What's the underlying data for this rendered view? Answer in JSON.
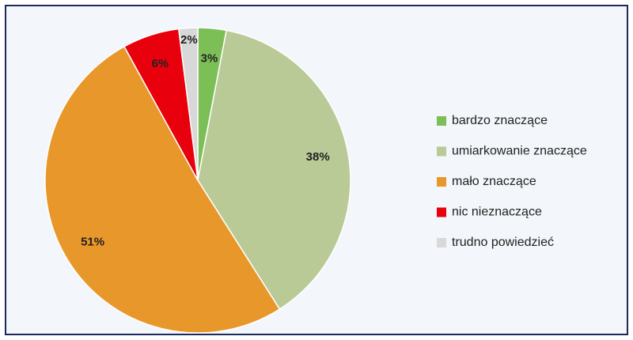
{
  "chart_data": {
    "type": "pie",
    "categories": [
      "bardzo znaczące",
      "umiarkowanie znaczące",
      "mało znaczące",
      "nic nieznaczące",
      "trudno powiedzieć"
    ],
    "values": [
      3,
      38,
      51,
      6,
      2
    ],
    "value_labels": [
      "3%",
      "38%",
      "51%",
      "6%",
      "2%"
    ],
    "colors": [
      "#7cbf57",
      "#b9ca96",
      "#e8972b",
      "#e8000d",
      "#d8d8d8"
    ],
    "legend": "right"
  }
}
